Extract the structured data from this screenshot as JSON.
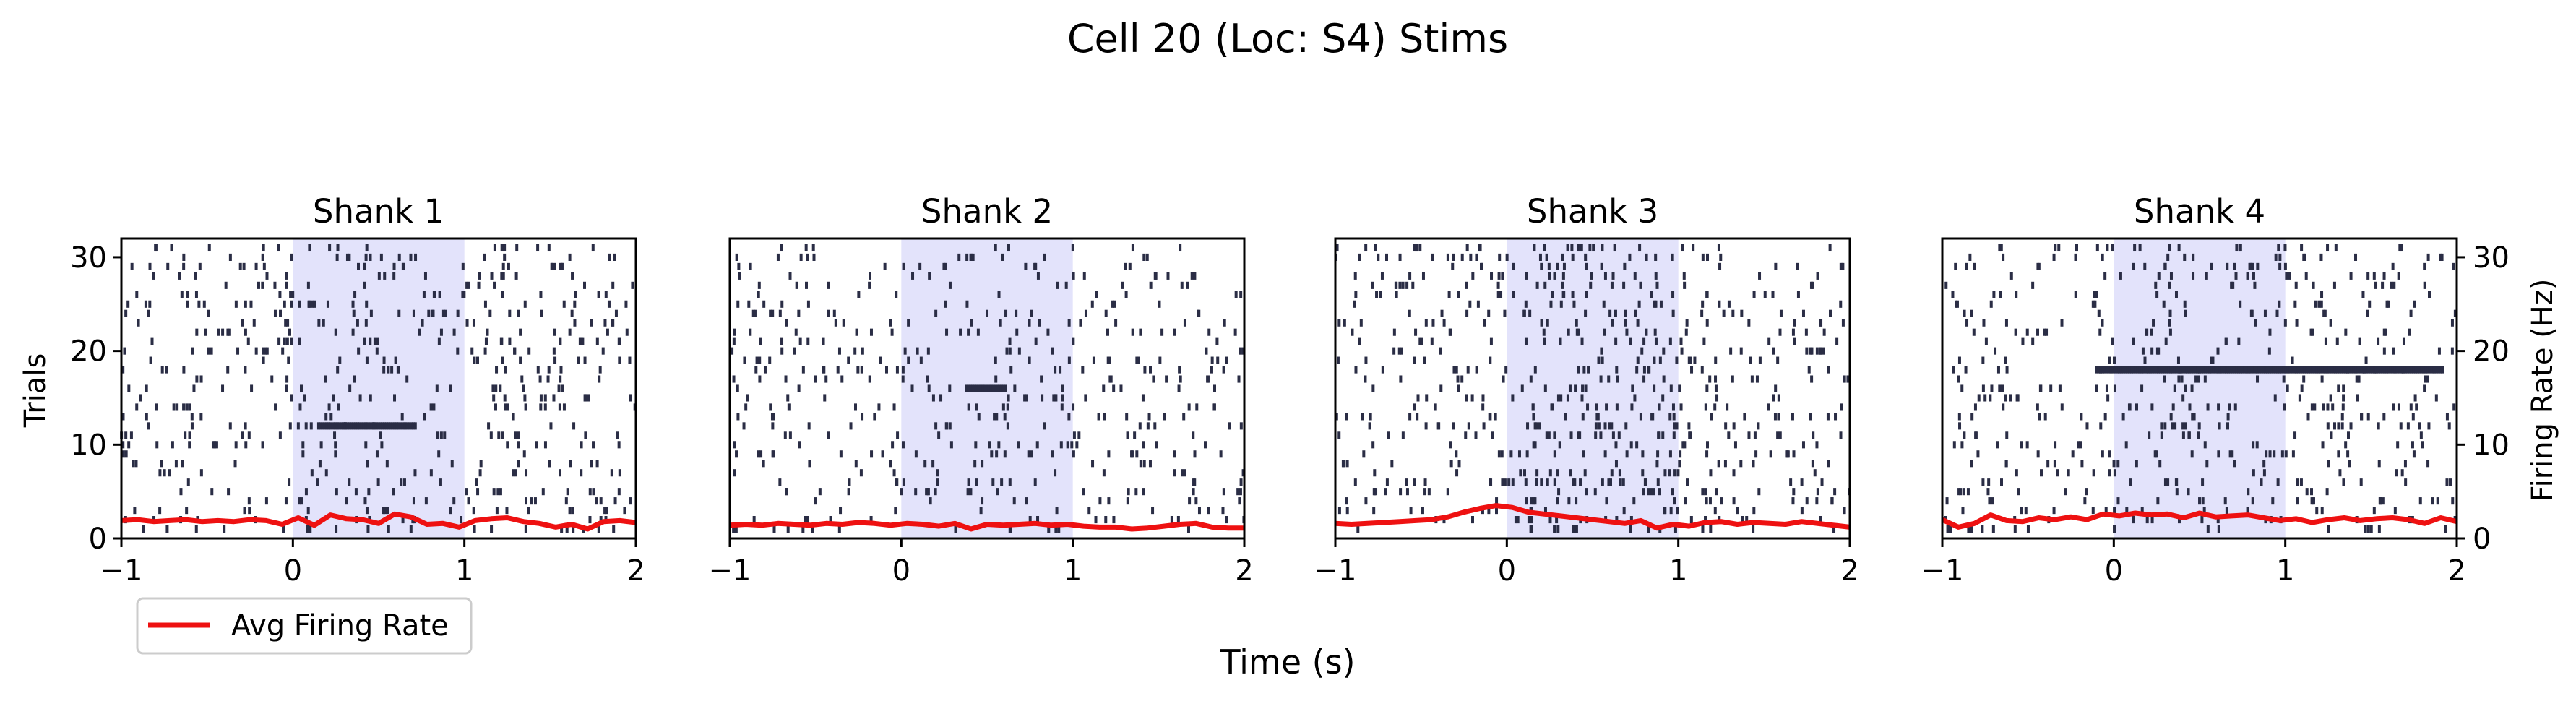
{
  "chart_data": {
    "type": "raster",
    "title": "Cell 20 (Loc: S4) Stims",
    "xlabel": "Time (s)",
    "ylabel_left": "Trials",
    "ylabel_right": "Firing Rate (Hz)",
    "xlim": [
      -1,
      2
    ],
    "ylim": [
      0,
      32
    ],
    "xticks": [
      -1,
      0,
      1,
      2
    ],
    "xtick_labels": [
      "−1",
      "0",
      "1",
      "2"
    ],
    "yticks": [
      0,
      10,
      20,
      30
    ],
    "ytick_labels": [
      "0",
      "10",
      "20",
      "30"
    ],
    "stim_window": [
      0,
      1
    ],
    "n_trials": 31,
    "legend": {
      "label": "Avg Firing Rate",
      "color": "#ee1111",
      "position": "lower-left"
    },
    "colors": {
      "spikes": "#2a2d45",
      "stim_shade": "#e3e3fb",
      "rate": "#ee1111"
    },
    "panels": [
      {
        "title": "Shank 1",
        "seed": 11,
        "base_rate": 5.5,
        "stim_rate": 5.0,
        "burst": {
          "trial": 12,
          "t0": 0.15,
          "t1": 0.72
        },
        "firing_rate": [
          1.9,
          2.0,
          1.8,
          1.9,
          2.0,
          1.8,
          1.9,
          1.8,
          2.0,
          1.9,
          1.5,
          2.2,
          1.4,
          2.5,
          2.1,
          2.0,
          1.6,
          2.6,
          2.3,
          1.5,
          1.6,
          1.2,
          1.9,
          2.1,
          2.2,
          1.8,
          1.6,
          1.2,
          1.5,
          1.0,
          1.8,
          1.9,
          1.7
        ]
      },
      {
        "title": "Shank 2",
        "seed": 23,
        "base_rate": 4.5,
        "stim_rate": 5.5,
        "burst": {
          "trial": 16,
          "t0": 0.38,
          "t1": 0.62
        },
        "firing_rate": [
          1.4,
          1.5,
          1.4,
          1.6,
          1.5,
          1.4,
          1.6,
          1.5,
          1.7,
          1.6,
          1.4,
          1.6,
          1.5,
          1.3,
          1.6,
          1.0,
          1.5,
          1.4,
          1.5,
          1.6,
          1.4,
          1.5,
          1.3,
          1.2,
          1.2,
          1.0,
          1.1,
          1.3,
          1.5,
          1.6,
          1.2,
          1.1,
          1.1
        ]
      },
      {
        "title": "Shank 3",
        "seed": 37,
        "base_rate": 5.5,
        "stim_rate": 10.0,
        "burst": null,
        "firing_rate": [
          1.6,
          1.5,
          1.6,
          1.7,
          1.8,
          1.9,
          2.0,
          2.3,
          2.8,
          3.2,
          3.5,
          3.3,
          2.8,
          2.6,
          2.4,
          2.2,
          2.0,
          1.8,
          1.6,
          1.9,
          1.1,
          1.5,
          1.3,
          1.7,
          1.8,
          1.5,
          1.7,
          1.6,
          1.5,
          1.8,
          1.6,
          1.4,
          1.2
        ]
      },
      {
        "title": "Shank 4",
        "seed": 51,
        "base_rate": 5.0,
        "stim_rate": 6.0,
        "burst": {
          "trial": 18,
          "t0": -0.1,
          "t1": 1.92
        },
        "firing_rate": [
          2.0,
          1.2,
          1.6,
          2.5,
          1.9,
          1.8,
          2.2,
          2.0,
          2.3,
          2.0,
          2.6,
          2.4,
          2.7,
          2.5,
          2.6,
          2.2,
          2.7,
          2.3,
          2.4,
          2.5,
          2.2,
          1.9,
          2.1,
          1.7,
          2.0,
          2.2,
          1.9,
          2.1,
          2.2,
          2.0,
          1.6,
          2.2,
          1.8
        ]
      }
    ]
  }
}
